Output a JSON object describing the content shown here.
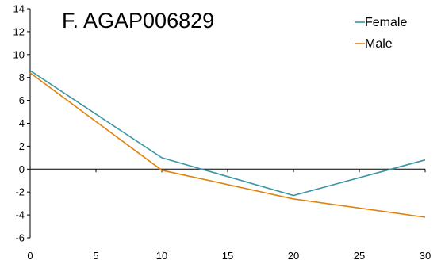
{
  "chart_data": {
    "type": "line",
    "title": "F. AGAP006829",
    "xlabel": "",
    "ylabel": "",
    "x": [
      0,
      10,
      20,
      30
    ],
    "xlim": [
      0,
      30
    ],
    "ylim": [
      -6,
      14
    ],
    "xticks": [
      "0",
      "5",
      "10",
      "15",
      "20",
      "25",
      "30"
    ],
    "yticks": [
      "14",
      "12",
      "10",
      "8",
      "6",
      "4",
      "2",
      "0",
      "-2",
      "-4",
      "-6"
    ],
    "grid": false,
    "legend_position": "top-right",
    "series": [
      {
        "name": "Female",
        "color": "#3a95a4",
        "values": [
          8.6,
          1.0,
          -2.3,
          0.8
        ]
      },
      {
        "name": "Male",
        "color": "#e0820c",
        "values": [
          8.4,
          -0.1,
          -2.6,
          -4.2
        ]
      }
    ]
  }
}
